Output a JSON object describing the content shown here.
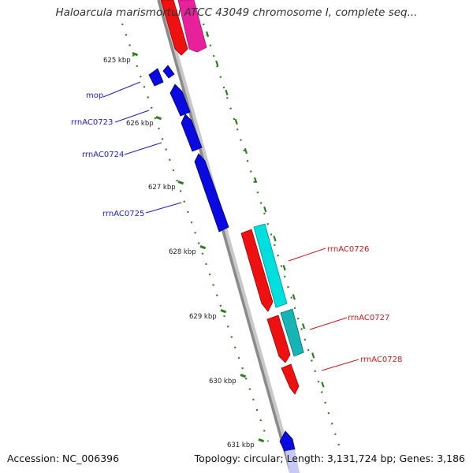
{
  "title": "Haloarcula marismortui ATCC 43049 chromosome I, complete seq...",
  "accession_text": "Accession: NC_006396",
  "summary_text": "Topology: circular; Length: 3,131,724 bp; Genes: 3,186",
  "colors": {
    "backbone": "#8a8a8a",
    "ruler_ticks": "#2e7d1e",
    "forward_gene_label": "#1c1cc8",
    "reverse_gene_label": "#d01818",
    "cds_forward": "#0a0ae0",
    "cds_reverse": "#ee1111",
    "rrna": "#00dede",
    "rrna_dark": "#16b4b4",
    "other_feature": "#e8209a"
  },
  "ruler": [
    {
      "label": "625 kbp"
    },
    {
      "label": "626 kbp"
    },
    {
      "label": "627 kbp"
    },
    {
      "label": "628 kbp"
    },
    {
      "label": "629 kbp"
    },
    {
      "label": "630 kbp"
    },
    {
      "label": "631 kbp"
    }
  ],
  "gene_labels": [
    {
      "text": "mop",
      "strand": "forward"
    },
    {
      "text": "rrnAC0723",
      "strand": "forward"
    },
    {
      "text": "rrnAC0724",
      "strand": "forward"
    },
    {
      "text": "rrnAC0725",
      "strand": "forward"
    },
    {
      "text": "rrnAC0726",
      "strand": "reverse"
    },
    {
      "text": "rrnAC0727",
      "strand": "reverse"
    },
    {
      "text": "rrnAC0728",
      "strand": "reverse"
    }
  ]
}
